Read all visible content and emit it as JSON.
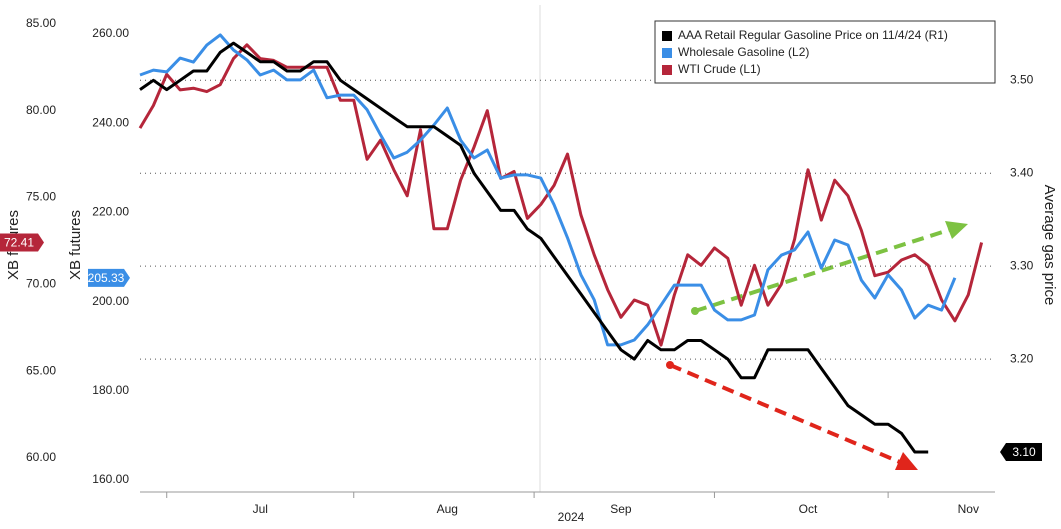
{
  "chart_data": {
    "type": "line",
    "xlabel": "2024",
    "ylabel": "Average gas price",
    "y2label": "XB futures",
    "y3label": "XB futures",
    "categories": [
      null,
      null,
      null,
      null,
      null,
      null,
      null,
      null,
      null,
      "Jul",
      null,
      null,
      null,
      null,
      null,
      null,
      null,
      null,
      null,
      null,
      null,
      null,
      null,
      "Aug",
      null,
      null,
      null,
      null,
      null,
      null,
      null,
      null,
      null,
      null,
      null,
      null,
      "Sep",
      null,
      null,
      null,
      null,
      null,
      null,
      null,
      null,
      null,
      null,
      null,
      null,
      null,
      "Oct",
      null,
      null,
      null,
      null,
      null,
      null,
      null,
      null,
      null,
      null,
      null,
      "Nov",
      null
    ],
    "ylim": [
      3.057,
      3.581
    ],
    "yticks": [
      {
        "value": 3.2,
        "label": "3.20"
      },
      {
        "value": 3.3,
        "label": "3.30"
      },
      {
        "value": 3.4,
        "label": "3.40"
      },
      {
        "value": 3.5,
        "label": "3.50"
      }
    ],
    "y2lim": [
      58.04,
      86.09
    ],
    "y2ticks": [
      {
        "value": 60,
        "label": "60.00"
      },
      {
        "value": 65,
        "label": "65.00"
      },
      {
        "value": 70,
        "label": "70.00"
      },
      {
        "value": 75,
        "label": "75.00"
      },
      {
        "value": 80,
        "label": "80.00"
      },
      {
        "value": 85,
        "label": "85.00"
      }
    ],
    "y3lim": [
      157.31,
      266.5
    ],
    "y3ticks": [
      {
        "value": 160,
        "label": "160.00"
      },
      {
        "value": 180,
        "label": "180.00"
      },
      {
        "value": 200,
        "label": "200.00"
      },
      {
        "value": 220,
        "label": "220.00"
      },
      {
        "value": 240,
        "label": "240.00"
      },
      {
        "value": 260,
        "label": "260.00"
      }
    ],
    "grid": true,
    "legend": "upper right",
    "series": [
      {
        "name": "AAA Retail Regular Gasoline Price on 11/4/24 (R1)",
        "color": "#000000",
        "axis": "y",
        "end_label": "3.10",
        "values": [
          3.49,
          3.5,
          3.49,
          3.5,
          3.51,
          3.51,
          3.53,
          3.54,
          3.53,
          3.52,
          3.52,
          3.51,
          3.51,
          3.52,
          3.52,
          3.5,
          3.49,
          3.48,
          3.47,
          3.46,
          3.45,
          3.45,
          3.45,
          3.44,
          3.43,
          3.4,
          3.38,
          3.36,
          3.36,
          3.34,
          3.33,
          3.31,
          3.29,
          3.27,
          3.25,
          3.23,
          3.21,
          3.2,
          3.22,
          3.21,
          3.21,
          3.22,
          3.22,
          3.21,
          3.2,
          3.18,
          3.18,
          3.21,
          3.21,
          3.21,
          3.21,
          3.19,
          3.17,
          3.15,
          3.14,
          3.13,
          3.13,
          3.12,
          3.1,
          3.1,
          null,
          null,
          null,
          null
        ]
      },
      {
        "name": "Wholesale Gasoline (L2)",
        "color": "#3a8ee6",
        "axis": "y3",
        "values": [
          250.8,
          251.9,
          251.5,
          254.6,
          253.7,
          257.5,
          259.8,
          256.4,
          254.2,
          250.8,
          251.9,
          249.7,
          249.7,
          251.9,
          245.7,
          246.3,
          246.3,
          243.0,
          237.4,
          232.2,
          233.5,
          236.2,
          239.6,
          243.4,
          236.2,
          232.2,
          234.0,
          227.7,
          228.4,
          228.4,
          227.7,
          221.7,
          214.3,
          206.0,
          200.4,
          190.3,
          190.3,
          191.4,
          194.8,
          199.2,
          203.7,
          203.7,
          203.7,
          198.1,
          195.9,
          195.9,
          197.0,
          207.1,
          210.4,
          211.6,
          215.6,
          207.5,
          213.8,
          212.7,
          204.8,
          200.8,
          206.0,
          202.6,
          196.3,
          199.2,
          198.1,
          205.33,
          null,
          null
        ]
      },
      {
        "name": "WTI Crude (L1)",
        "color": "#b5263a",
        "axis": "y2",
        "values": [
          79.0,
          80.3,
          82.1,
          81.2,
          81.3,
          81.1,
          81.5,
          83.0,
          83.8,
          83.0,
          82.9,
          82.5,
          82.5,
          82.5,
          82.5,
          80.6,
          80.6,
          77.2,
          78.3,
          76.6,
          75.1,
          78.9,
          73.2,
          73.2,
          76.0,
          77.9,
          80.0,
          76.1,
          76.5,
          73.8,
          74.6,
          75.7,
          77.5,
          74.0,
          71.7,
          69.7,
          68.1,
          69.1,
          68.8,
          66.5,
          69.4,
          71.7,
          71.1,
          72.1,
          71.5,
          68.8,
          71.1,
          68.8,
          70.0,
          72.6,
          76.6,
          73.7,
          76.0,
          75.1,
          73.1,
          70.5,
          70.7,
          71.4,
          71.7,
          71.1,
          69.1,
          67.9,
          69.4,
          72.41
        ]
      }
    ]
  }
}
